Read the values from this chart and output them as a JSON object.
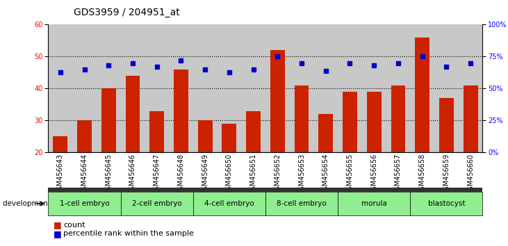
{
  "title": "GDS3959 / 204951_at",
  "samples": [
    "GSM456643",
    "GSM456644",
    "GSM456645",
    "GSM456646",
    "GSM456647",
    "GSM456648",
    "GSM456649",
    "GSM456650",
    "GSM456651",
    "GSM456652",
    "GSM456653",
    "GSM456654",
    "GSM456655",
    "GSM456656",
    "GSM456657",
    "GSM456658",
    "GSM456659",
    "GSM456660"
  ],
  "counts": [
    25,
    30,
    40,
    44,
    33,
    46,
    30,
    29,
    33,
    52,
    41,
    32,
    39,
    39,
    41,
    56,
    37,
    41
  ],
  "percentiles": [
    63,
    65,
    68,
    70,
    67,
    72,
    65,
    63,
    65,
    75,
    70,
    64,
    70,
    68,
    70,
    75,
    67,
    70
  ],
  "stages": [
    {
      "label": "1-cell embryo",
      "start": 0,
      "end": 3
    },
    {
      "label": "2-cell embryo",
      "start": 3,
      "end": 6
    },
    {
      "label": "4-cell embryo",
      "start": 6,
      "end": 9
    },
    {
      "label": "8-cell embryo",
      "start": 9,
      "end": 12
    },
    {
      "label": "morula",
      "start": 12,
      "end": 15
    },
    {
      "label": "blastocyst",
      "start": 15,
      "end": 18
    }
  ],
  "ylim_left": [
    20,
    60
  ],
  "ylim_right": [
    0,
    100
  ],
  "bar_color": "#CC2200",
  "dot_color": "#0000CC",
  "bg_color": "#C8C8C8",
  "stage_green": "#90EE90",
  "stage_dark_sep": "#333333",
  "title_fontsize": 10,
  "tick_fontsize": 7,
  "label_fontsize": 7.5,
  "legend_fontsize": 8
}
